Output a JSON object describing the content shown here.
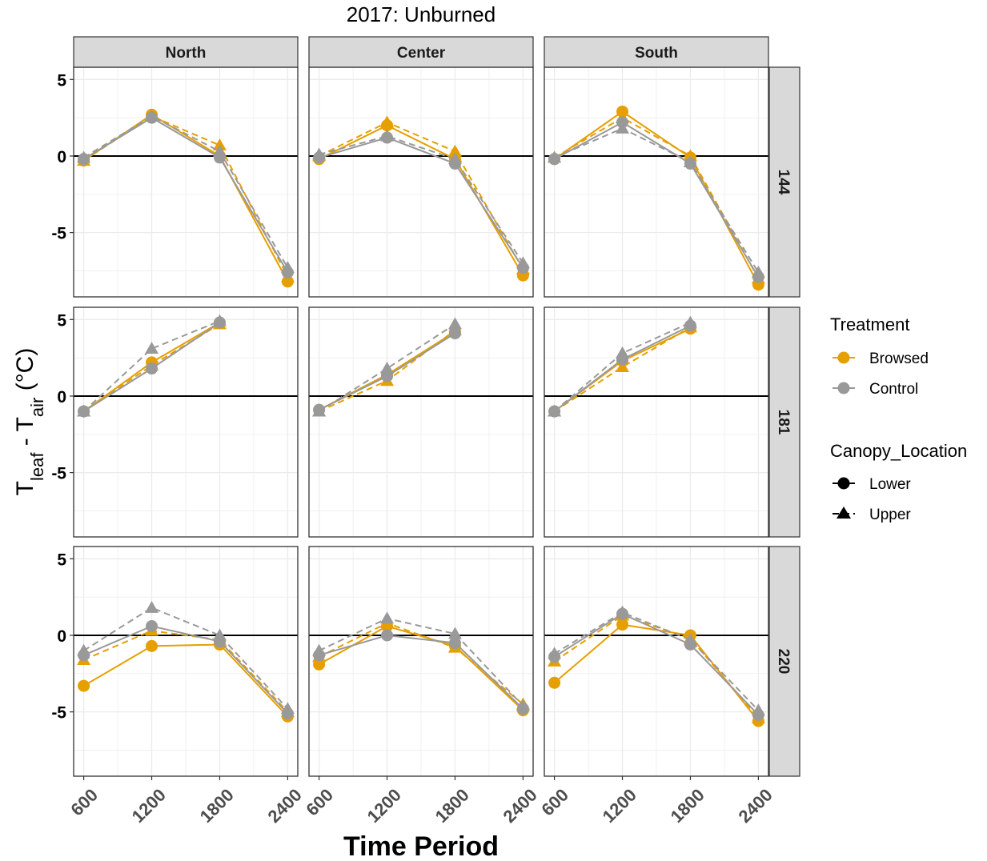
{
  "chart_data": {
    "type": "line",
    "title": "2017: Unburned",
    "xlabel": "Time Period",
    "ylabel": {
      "main": "T",
      "sub1": "leaf",
      "mid": " - T",
      "sub2": "air",
      "unit": " (°C)"
    },
    "x": [
      600,
      1200,
      1800,
      2400
    ],
    "x_tick_labels": [
      "600",
      "1200",
      "1800",
      "2400"
    ],
    "ylim": [
      -9.2,
      5.8
    ],
    "y_ticks": [
      5,
      0,
      -5
    ],
    "y_tick_labels": [
      "5",
      "0",
      "-5"
    ],
    "columns": [
      "North",
      "Center",
      "South"
    ],
    "rows": [
      "144",
      "181",
      "220"
    ],
    "colors": {
      "Browsed": "#E69F00",
      "Control": "#999999"
    },
    "legend": {
      "position": "right",
      "treatment_title": "Treatment",
      "treatment_items": [
        "Browsed",
        "Control"
      ],
      "canopy_title": "Canopy_Location",
      "canopy_items": [
        "Lower",
        "Upper"
      ]
    },
    "panels": [
      {
        "row": "144",
        "col": "North",
        "series": [
          {
            "treatment": "Browsed",
            "canopy": "Lower",
            "values": [
              -0.3,
              2.7,
              0.0,
              -8.2
            ]
          },
          {
            "treatment": "Browsed",
            "canopy": "Upper",
            "values": [
              -0.3,
              2.6,
              0.7,
              -7.9
            ]
          },
          {
            "treatment": "Control",
            "canopy": "Lower",
            "values": [
              -0.2,
              2.5,
              -0.1,
              -7.6
            ]
          },
          {
            "treatment": "Control",
            "canopy": "Upper",
            "values": [
              -0.1,
              2.6,
              0.3,
              -7.3
            ]
          }
        ]
      },
      {
        "row": "144",
        "col": "Center",
        "series": [
          {
            "treatment": "Browsed",
            "canopy": "Lower",
            "values": [
              -0.2,
              2.0,
              -0.2,
              -7.8
            ]
          },
          {
            "treatment": "Browsed",
            "canopy": "Upper",
            "values": [
              0.0,
              2.2,
              0.3,
              -7.4
            ]
          },
          {
            "treatment": "Control",
            "canopy": "Lower",
            "values": [
              -0.1,
              1.2,
              -0.5,
              -7.3
            ]
          },
          {
            "treatment": "Control",
            "canopy": "Upper",
            "values": [
              0.1,
              1.3,
              -0.2,
              -7.0
            ]
          }
        ]
      },
      {
        "row": "144",
        "col": "South",
        "series": [
          {
            "treatment": "Browsed",
            "canopy": "Lower",
            "values": [
              -0.2,
              2.9,
              -0.1,
              -8.4
            ]
          },
          {
            "treatment": "Browsed",
            "canopy": "Upper",
            "values": [
              -0.1,
              2.5,
              0.0,
              -8.0
            ]
          },
          {
            "treatment": "Control",
            "canopy": "Lower",
            "values": [
              -0.2,
              2.2,
              -0.5,
              -7.9
            ]
          },
          {
            "treatment": "Control",
            "canopy": "Upper",
            "values": [
              -0.1,
              1.8,
              -0.4,
              -7.6
            ]
          }
        ]
      },
      {
        "row": "181",
        "col": "North",
        "series": [
          {
            "treatment": "Browsed",
            "canopy": "Lower",
            "values": [
              -1.0,
              2.2,
              4.8,
              null
            ]
          },
          {
            "treatment": "Browsed",
            "canopy": "Upper",
            "values": [
              -1.0,
              2.0,
              4.7,
              null
            ]
          },
          {
            "treatment": "Control",
            "canopy": "Lower",
            "values": [
              -1.0,
              1.8,
              4.8,
              null
            ]
          },
          {
            "treatment": "Control",
            "canopy": "Upper",
            "values": [
              -1.0,
              3.1,
              4.9,
              null
            ]
          }
        ]
      },
      {
        "row": "181",
        "col": "Center",
        "series": [
          {
            "treatment": "Browsed",
            "canopy": "Lower",
            "values": [
              -0.9,
              1.4,
              4.2,
              null
            ]
          },
          {
            "treatment": "Browsed",
            "canopy": "Upper",
            "values": [
              -1.0,
              1.0,
              4.3,
              null
            ]
          },
          {
            "treatment": "Control",
            "canopy": "Lower",
            "values": [
              -0.9,
              1.3,
              4.1,
              null
            ]
          },
          {
            "treatment": "Control",
            "canopy": "Upper",
            "values": [
              -1.0,
              1.8,
              4.7,
              null
            ]
          }
        ]
      },
      {
        "row": "181",
        "col": "South",
        "series": [
          {
            "treatment": "Browsed",
            "canopy": "Lower",
            "values": [
              -1.0,
              2.3,
              4.4,
              null
            ]
          },
          {
            "treatment": "Browsed",
            "canopy": "Upper",
            "values": [
              -1.0,
              1.9,
              4.5,
              null
            ]
          },
          {
            "treatment": "Control",
            "canopy": "Lower",
            "values": [
              -1.0,
              2.4,
              4.6,
              null
            ]
          },
          {
            "treatment": "Control",
            "canopy": "Upper",
            "values": [
              -1.0,
              2.8,
              4.8,
              null
            ]
          }
        ]
      },
      {
        "row": "220",
        "col": "North",
        "series": [
          {
            "treatment": "Browsed",
            "canopy": "Lower",
            "values": [
              -3.3,
              -0.7,
              -0.6,
              -5.3
            ]
          },
          {
            "treatment": "Browsed",
            "canopy": "Upper",
            "values": [
              -1.6,
              0.3,
              -0.3,
              -5.0
            ]
          },
          {
            "treatment": "Control",
            "canopy": "Lower",
            "values": [
              -1.3,
              0.6,
              -0.4,
              -5.1
            ]
          },
          {
            "treatment": "Control",
            "canopy": "Upper",
            "values": [
              -1.0,
              1.8,
              0.0,
              -4.8
            ]
          }
        ]
      },
      {
        "row": "220",
        "col": "Center",
        "series": [
          {
            "treatment": "Browsed",
            "canopy": "Lower",
            "values": [
              -1.9,
              0.6,
              -0.7,
              -4.9
            ]
          },
          {
            "treatment": "Browsed",
            "canopy": "Upper",
            "values": [
              -1.4,
              0.8,
              -0.8,
              -4.5
            ]
          },
          {
            "treatment": "Control",
            "canopy": "Lower",
            "values": [
              -1.3,
              0.0,
              -0.5,
              -4.8
            ]
          },
          {
            "treatment": "Control",
            "canopy": "Upper",
            "values": [
              -1.0,
              1.1,
              0.1,
              -4.6
            ]
          }
        ]
      },
      {
        "row": "220",
        "col": "South",
        "series": [
          {
            "treatment": "Browsed",
            "canopy": "Lower",
            "values": [
              -3.1,
              0.7,
              0.0,
              -5.6
            ]
          },
          {
            "treatment": "Browsed",
            "canopy": "Upper",
            "values": [
              -1.7,
              1.3,
              -0.2,
              -5.4
            ]
          },
          {
            "treatment": "Control",
            "canopy": "Lower",
            "values": [
              -1.4,
              1.4,
              -0.6,
              -5.2
            ]
          },
          {
            "treatment": "Control",
            "canopy": "Upper",
            "values": [
              -1.2,
              1.5,
              -0.3,
              -4.9
            ]
          }
        ]
      }
    ]
  }
}
